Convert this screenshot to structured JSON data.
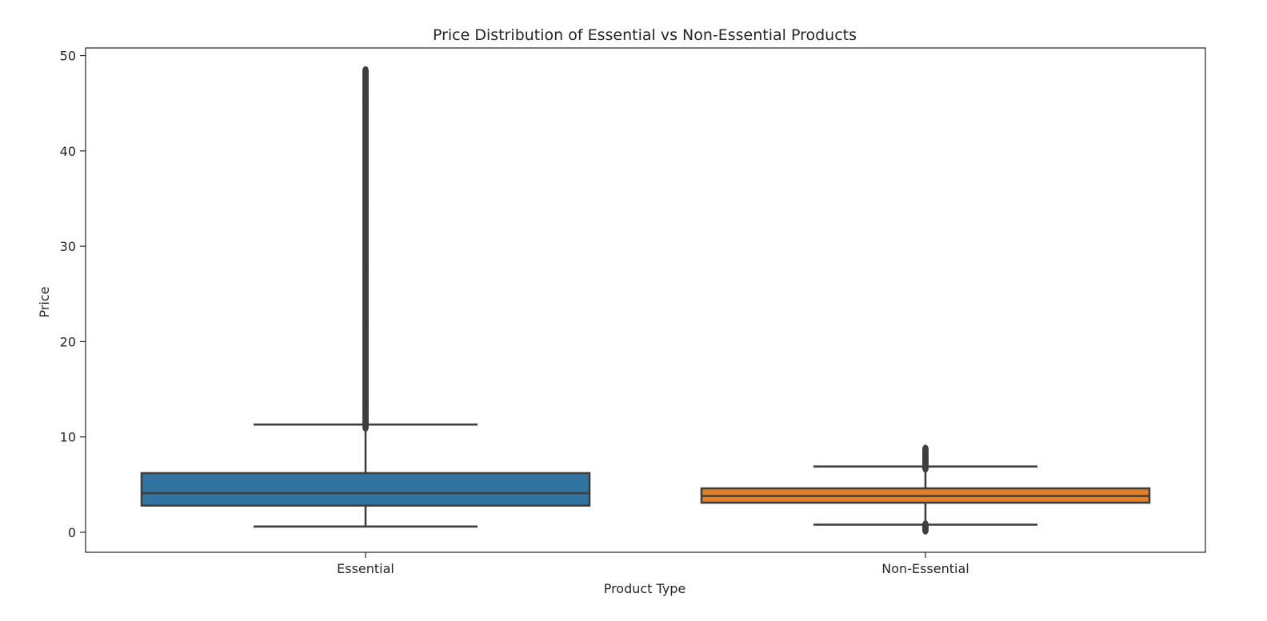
{
  "chart_data": {
    "type": "box",
    "title": "Price Distribution of Essential vs Non-Essential Products",
    "xlabel": "Product Type",
    "ylabel": "Price",
    "ylim": [
      -2.1,
      50.8
    ],
    "yticks": [
      "0",
      "10",
      "20",
      "30",
      "40",
      "50"
    ],
    "yticks_values": [
      0,
      10,
      20,
      30,
      40,
      50
    ],
    "grid": false,
    "categories": [
      "Essential",
      "Non-Essential"
    ],
    "boxes": [
      {
        "category": "Essential",
        "whisker_low": 0.6,
        "q1": 2.8,
        "median": 4.1,
        "q3": 6.2,
        "whisker_high": 11.3,
        "outliers_min": 11.0,
        "outliers_max": 48.5,
        "color": "#3274a1"
      },
      {
        "category": "Non-Essential",
        "whisker_low": 0.8,
        "q1": 3.1,
        "median": 3.8,
        "q3": 4.6,
        "whisker_high": 6.9,
        "outliers_low_min": 0.2,
        "outliers_low_max": 0.8,
        "outliers_high_min": 6.7,
        "outliers_high_max": 8.8,
        "color": "#e1812c"
      }
    ],
    "line_color": "#3f3f3f"
  }
}
